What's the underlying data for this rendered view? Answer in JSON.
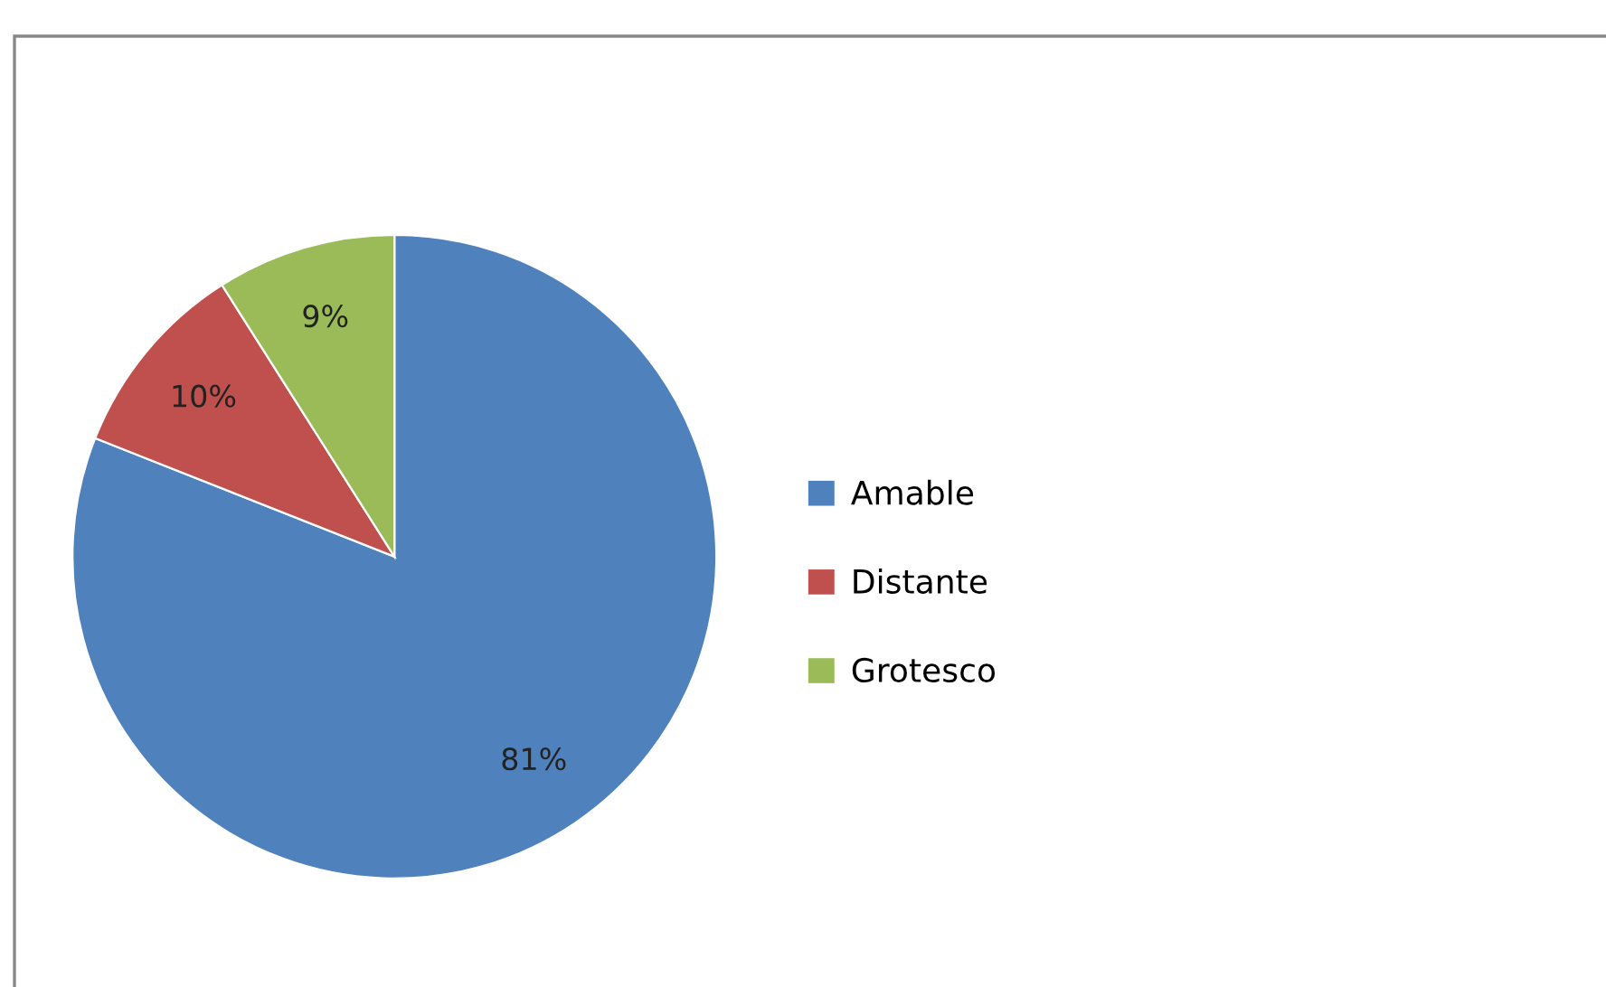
{
  "chart_data": {
    "type": "pie",
    "categories": [
      "Amable",
      "Distante",
      "Grotesco"
    ],
    "values": [
      81,
      10,
      9
    ],
    "colors": [
      "#4f81bd",
      "#c0504d",
      "#9bbb59"
    ],
    "value_labels": [
      "81%",
      "10%",
      "9%"
    ],
    "legend": "right"
  }
}
